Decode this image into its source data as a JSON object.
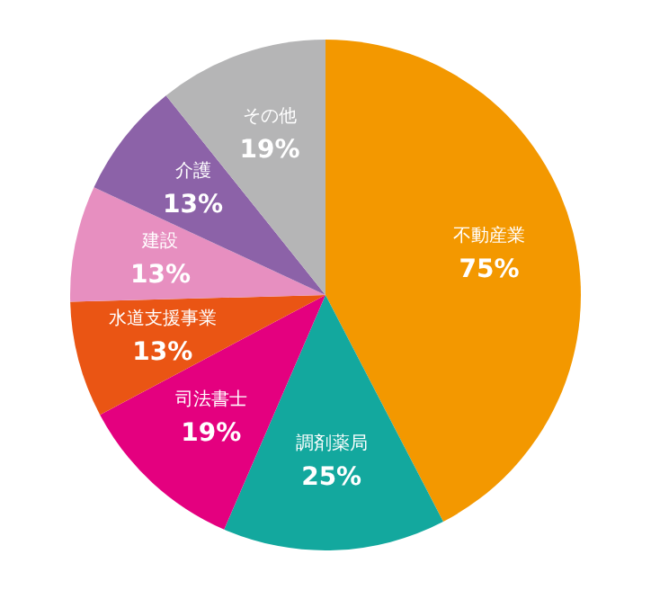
{
  "chart_data": {
    "type": "pie",
    "categories": [
      "不動産業",
      "調剤薬局",
      "司法書士",
      "水道支援事業",
      "建設",
      "介護",
      "その他"
    ],
    "values": [
      75,
      25,
      19,
      13,
      13,
      13,
      19
    ],
    "value_labels": [
      "75%",
      "25%",
      "19%",
      "13%",
      "13%",
      "13%",
      "19%"
    ],
    "colors": [
      "#f39800",
      "#13a89e",
      "#e4007f",
      "#ea5514",
      "#e78fc0",
      "#8c62a8",
      "#b5b5b6"
    ]
  }
}
